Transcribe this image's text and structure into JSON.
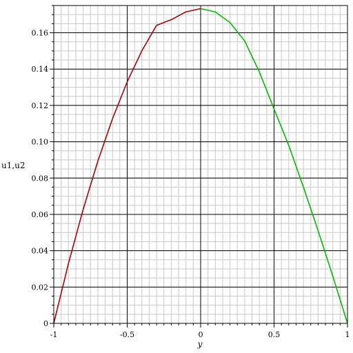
{
  "chart_data": {
    "type": "line",
    "title": "",
    "xlabel": "y",
    "ylabel": "u1,u2",
    "xlim": [
      -1,
      1
    ],
    "ylim": [
      0,
      0.175
    ],
    "grid": true,
    "x_major_ticks": [
      -1,
      -0.5,
      0,
      0.5,
      1
    ],
    "x_tick_labels": [
      "-1",
      "-0.5",
      "0",
      "0.5",
      "1"
    ],
    "y_major_ticks": [
      0,
      0.02,
      0.04,
      0.06,
      0.08,
      0.1,
      0.12,
      0.14,
      0.16
    ],
    "y_tick_labels": [
      "0",
      "0.02",
      "0.04",
      "0.06",
      "0.08",
      "0.10",
      "0.12",
      "0.14",
      "0.16"
    ],
    "series": [
      {
        "color": "#aa0000",
        "x": [
          -1,
          -0.9,
          -0.8,
          -0.7,
          -0.6,
          -0.5,
          -0.4,
          -0.3,
          -0.2,
          -0.1,
          0
        ],
        "y": [
          0,
          0.033,
          0.0627,
          0.0893,
          0.1127,
          0.133,
          0.1501,
          0.1641,
          0.1672,
          0.1715,
          0.1733
        ]
      },
      {
        "color": "#00bb00",
        "x": [
          0,
          0.1,
          0.2,
          0.3,
          0.4,
          0.5,
          0.6,
          0.7,
          0.8,
          0.9,
          1
        ],
        "y": [
          0.1733,
          0.1715,
          0.1656,
          0.1555,
          0.1384,
          0.118,
          0.098,
          0.075,
          0.051,
          0.026,
          0
        ]
      }
    ]
  }
}
